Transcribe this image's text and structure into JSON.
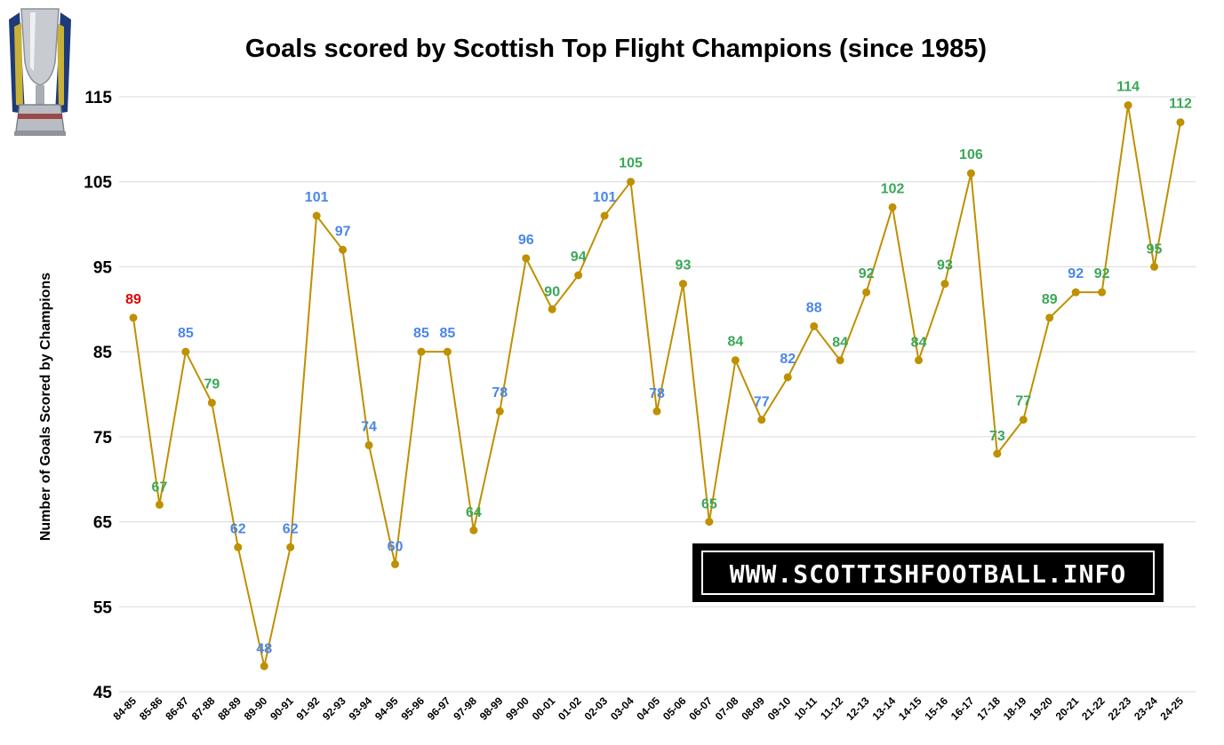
{
  "chart_data": {
    "type": "line",
    "title": "Goals scored by Scottish Top Flight Champions (since 1985)",
    "ylabel": "Number of Goals Scored by Champions",
    "xlabel": "",
    "ylim": [
      45,
      115
    ],
    "yticks": [
      "45",
      "55",
      "65",
      "75",
      "85",
      "95",
      "105",
      "115"
    ],
    "grid": true,
    "legend": "none",
    "categories": [
      "84-85",
      "85-86",
      "86-87",
      "87-88",
      "88-89",
      "89-90",
      "90-91",
      "91-92",
      "92-93",
      "93-94",
      "94-95",
      "95-96",
      "96-97",
      "97-98",
      "98-99",
      "99-00",
      "00-01",
      "01-02",
      "02-03",
      "03-04",
      "04-05",
      "05-06",
      "06-07",
      "07-08",
      "08-09",
      "09-10",
      "10-11",
      "11-12",
      "12-13",
      "13-14",
      "14-15",
      "15-16",
      "16-17",
      "17-18",
      "18-19",
      "19-20",
      "20-21",
      "21-22",
      "22-23",
      "23-24",
      "24-25"
    ],
    "series": [
      {
        "values": [
          89,
          67,
          85,
          79,
          62,
          48,
          62,
          101,
          97,
          74,
          60,
          85,
          85,
          64,
          78,
          96,
          90,
          94,
          101,
          105,
          78,
          93,
          65,
          84,
          77,
          82,
          88,
          84,
          92,
          102,
          84,
          93,
          106,
          73,
          77,
          89,
          92,
          92,
          114,
          95,
          112
        ],
        "label_colors": [
          "red",
          "green",
          "blue",
          "green",
          "blue",
          "blue",
          "blue",
          "blue",
          "blue",
          "blue",
          "blue",
          "blue",
          "blue",
          "green",
          "blue",
          "blue",
          "green",
          "green",
          "blue",
          "green",
          "blue",
          "green",
          "green",
          "green",
          "blue",
          "blue",
          "blue",
          "green",
          "green",
          "green",
          "green",
          "green",
          "green",
          "green",
          "green",
          "green",
          "blue",
          "green",
          "green",
          "green",
          "green"
        ]
      }
    ]
  },
  "colors": {
    "line": "#bf9000",
    "marker": "#bf9000",
    "red": "#e00000",
    "green": "#3aa757",
    "blue": "#4a86e8",
    "grid": "#d9d9d9"
  },
  "watermark": {
    "text": "WWW.SCOTTISHFOOTBALL.INFO"
  },
  "logo": {
    "icon": "trophy-icon"
  }
}
